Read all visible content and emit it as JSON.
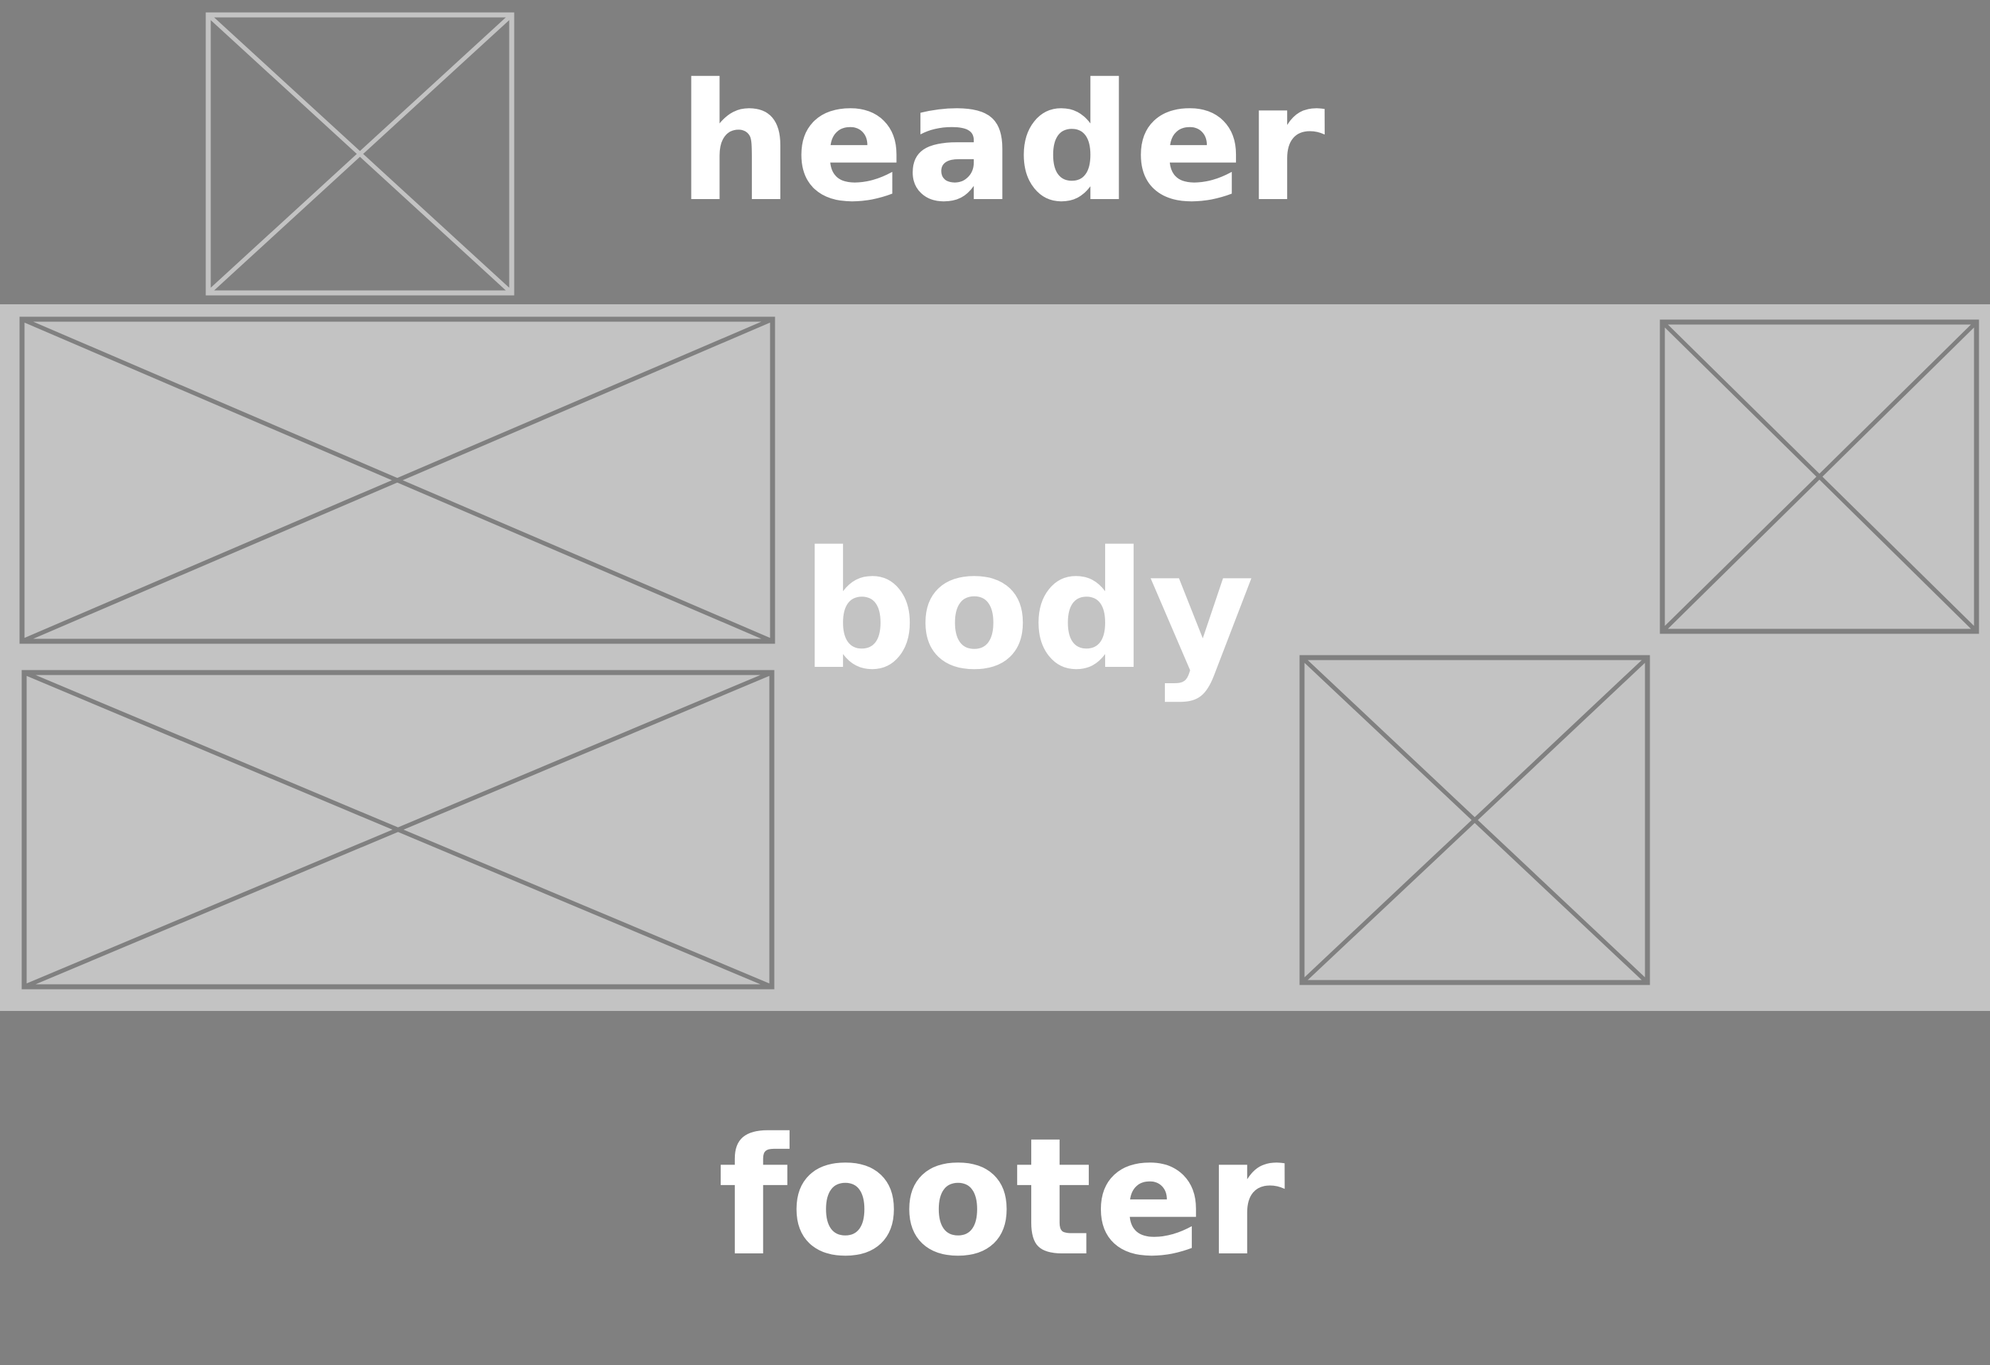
{
  "colors": {
    "band_dark": "#808080",
    "band_light": "#c3c3c3",
    "label": "#ffffff",
    "outline_on_dark": "#c3c3c3",
    "outline_on_light": "#808080"
  },
  "regions": {
    "header": {
      "label": "header"
    },
    "body": {
      "label": "body"
    },
    "footer": {
      "label": "footer"
    }
  },
  "placeholders": [
    {
      "region": "header",
      "kind": "image-placeholder"
    },
    {
      "region": "body",
      "kind": "image-placeholder"
    },
    {
      "region": "body",
      "kind": "image-placeholder"
    },
    {
      "region": "body",
      "kind": "image-placeholder"
    },
    {
      "region": "body",
      "kind": "image-placeholder"
    }
  ]
}
